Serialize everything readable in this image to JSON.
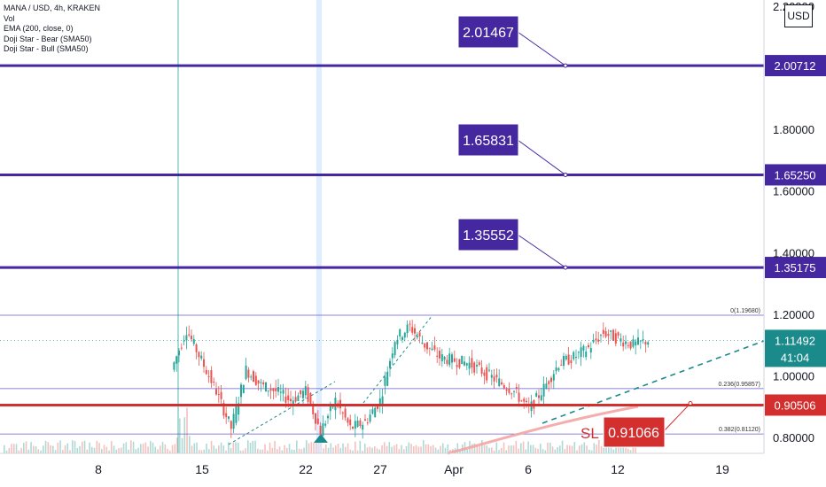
{
  "symbol_title": "MANA / USD, 4h, KRAKEN",
  "indicators": [
    "Vol",
    "EMA (200, close, 0)",
    "Doji Star - Bear (SMA50)",
    "Doji Star - Bull (SMA50)"
  ],
  "currency_button": "USD",
  "colors": {
    "resistance_line": "#4527a0",
    "callout": "#4527a0",
    "support_line": "#d32f2f",
    "stop_loss": "#d32f2f",
    "price_label": "#1a8a8a",
    "trendline": "#1a8a8a",
    "candle_up": "#26a69a",
    "candle_down": "#ef5350",
    "fib_line": "#6a5acd",
    "ema": "#f4a4a4"
  },
  "chart_data": {
    "type": "candlestick",
    "instrument": "MANA / USD",
    "timeframe": "4h",
    "exchange": "KRAKEN",
    "x_ticks": [
      "8",
      "15",
      "22",
      "27",
      "Apr",
      "6",
      "12",
      "19"
    ],
    "y_ticks": [
      "2.20000",
      "1.80000",
      "1.60000",
      "1.40000",
      "1.20000",
      "1.00000",
      "0.80000"
    ],
    "ylim": [
      0.76,
      2.22
    ],
    "horizontal_levels": [
      {
        "value": "2.00712",
        "target": "2.01467"
      },
      {
        "value": "1.65250",
        "target": "1.65831"
      },
      {
        "value": "1.35175",
        "target": "1.35552"
      }
    ],
    "support_level": "0.90506",
    "stop_loss": {
      "label": "SL",
      "value": "0.91066"
    },
    "current_price": "1.11492",
    "countdown": "41:04",
    "fib_levels": [
      {
        "label": "0(1.19680)",
        "value": 1.1968
      },
      {
        "label": "0.236(0.95857)",
        "value": 0.95857
      },
      {
        "label": "0.382(0.81120)",
        "value": 0.8112
      }
    ],
    "price_path": [
      {
        "x": "2021-03-13",
        "y": 1.02
      },
      {
        "x": "2021-03-14",
        "y": 1.15
      },
      {
        "x": "2021-03-15",
        "y": 1.05
      },
      {
        "x": "2021-03-16",
        "y": 0.95
      },
      {
        "x": "2021-03-17",
        "y": 0.83
      },
      {
        "x": "2021-03-18",
        "y": 1.02
      },
      {
        "x": "2021-03-19",
        "y": 0.97
      },
      {
        "x": "2021-03-20",
        "y": 0.95
      },
      {
        "x": "2021-03-21",
        "y": 0.92
      },
      {
        "x": "2021-03-22",
        "y": 0.95
      },
      {
        "x": "2021-03-23",
        "y": 0.82
      },
      {
        "x": "2021-03-24",
        "y": 0.92
      },
      {
        "x": "2021-03-25",
        "y": 0.83
      },
      {
        "x": "2021-03-26",
        "y": 0.85
      },
      {
        "x": "2021-03-27",
        "y": 0.92
      },
      {
        "x": "2021-03-28",
        "y": 1.12
      },
      {
        "x": "2021-03-29",
        "y": 1.16
      },
      {
        "x": "2021-03-30",
        "y": 1.1
      },
      {
        "x": "2021-03-31",
        "y": 1.06
      },
      {
        "x": "2021-04-01",
        "y": 1.05
      },
      {
        "x": "2021-04-02",
        "y": 1.04
      },
      {
        "x": "2021-04-03",
        "y": 1.01
      },
      {
        "x": "2021-04-04",
        "y": 0.98
      },
      {
        "x": "2021-04-05",
        "y": 0.95
      },
      {
        "x": "2021-04-06",
        "y": 0.89
      },
      {
        "x": "2021-04-07",
        "y": 0.96
      },
      {
        "x": "2021-04-08",
        "y": 1.04
      },
      {
        "x": "2021-04-09",
        "y": 1.06
      },
      {
        "x": "2021-04-10",
        "y": 1.09
      },
      {
        "x": "2021-04-11",
        "y": 1.14
      },
      {
        "x": "2021-04-12",
        "y": 1.12
      },
      {
        "x": "2021-04-13",
        "y": 1.1
      },
      {
        "x": "2021-04-14",
        "y": 1.115
      }
    ]
  }
}
